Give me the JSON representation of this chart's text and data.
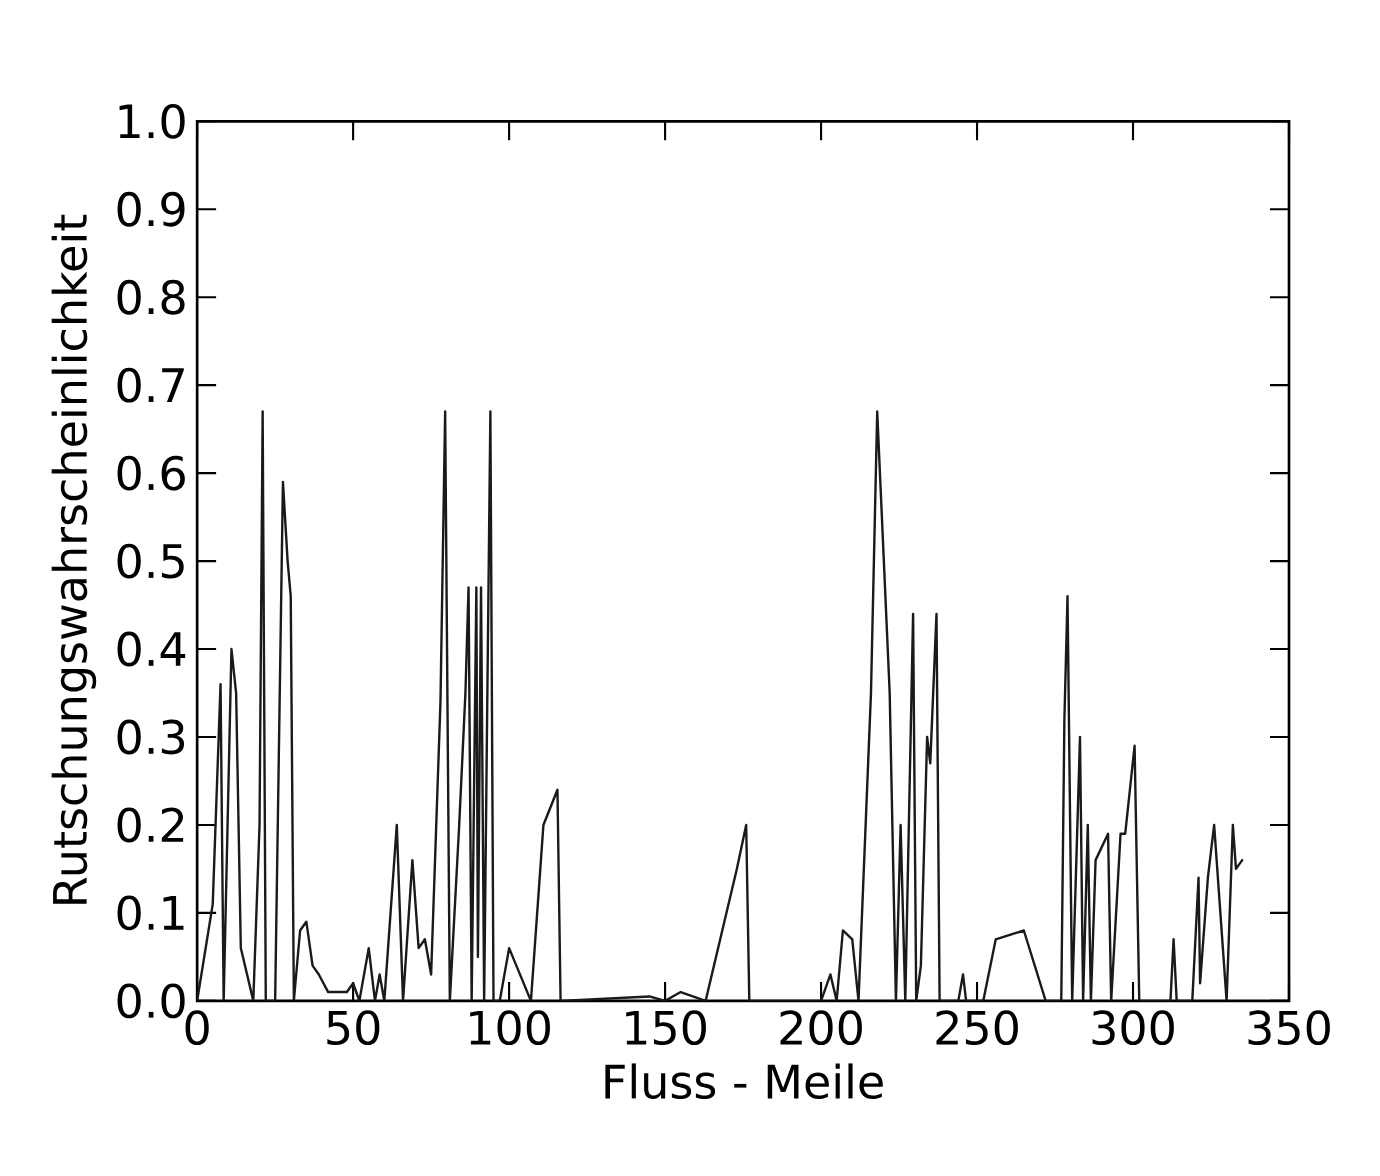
{
  "chart_data": {
    "type": "line",
    "xlabel": "Fluss - Meile",
    "ylabel": "Rutschungswahrscheinlichkeit",
    "x": [
      0,
      5,
      7.5,
      8.5,
      11,
      12.5,
      14,
      18,
      20,
      21,
      22,
      25,
      27.5,
      29,
      30,
      31,
      33,
      35,
      37,
      39,
      42,
      48,
      50,
      52,
      55,
      57,
      58.5,
      60,
      64,
      66,
      69,
      71,
      73,
      75,
      78,
      79.5,
      81,
      84,
      86,
      87,
      88,
      89.5,
      90,
      91,
      92,
      93,
      94,
      95,
      97,
      100,
      107,
      111,
      115.5,
      116.5,
      145,
      150,
      155,
      163,
      173,
      176,
      177,
      200,
      203,
      205,
      207,
      210,
      212,
      216,
      218,
      222,
      224,
      225.5,
      227,
      229.5,
      230.5,
      232,
      234,
      235,
      237,
      238,
      244,
      245.5,
      246.5,
      252,
      256,
      265,
      272,
      277,
      278,
      279,
      280.5,
      283,
      284,
      285.5,
      286.5,
      288,
      292,
      293,
      296,
      297.5,
      300.5,
      302,
      312,
      313,
      314,
      319,
      321,
      321.5,
      324,
      326,
      330,
      332,
      333,
      335
    ],
    "values": [
      0,
      0.11,
      0.36,
      0,
      0.4,
      0.35,
      0.06,
      0,
      0.2,
      0.67,
      0,
      0,
      0.59,
      0.5,
      0.46,
      0,
      0.08,
      0.09,
      0.04,
      0.03,
      0.01,
      0.01,
      0.02,
      0,
      0.06,
      0,
      0.03,
      0,
      0.2,
      0,
      0.16,
      0.06,
      0.07,
      0.03,
      0.34,
      0.67,
      0,
      0.2,
      0.35,
      0.47,
      0,
      0.47,
      0.05,
      0.47,
      0,
      0.34,
      0.67,
      0,
      0,
      0.06,
      0,
      0.2,
      0.24,
      0,
      0.005,
      0,
      0.01,
      0,
      0.15,
      0.2,
      0,
      0,
      0.03,
      0,
      0.08,
      0.07,
      0,
      0.35,
      0.67,
      0.35,
      0,
      0.2,
      0,
      0.44,
      0,
      0.04,
      0.3,
      0.27,
      0.44,
      0,
      0,
      0.03,
      0,
      0,
      0.07,
      0.08,
      0,
      0,
      0.32,
      0.46,
      0,
      0.3,
      0,
      0.2,
      0,
      0.16,
      0.19,
      0,
      0.19,
      0.19,
      0.29,
      0,
      0,
      0.07,
      0,
      0,
      0.14,
      0.02,
      0.14,
      0.2,
      0,
      0.2,
      0.15,
      0.16
    ],
    "color": "#1a1a1a",
    "xlim": [
      0,
      350
    ],
    "ylim": [
      0,
      1.0
    ],
    "xticks": [
      0,
      50,
      100,
      150,
      200,
      250,
      300,
      350
    ],
    "yticks": [
      {
        "value": 0,
        "label": "0.0"
      },
      {
        "value": 0.1,
        "label": "0.1"
      },
      {
        "value": 0.2,
        "label": "0.2"
      },
      {
        "value": 0.3,
        "label": "0.3"
      },
      {
        "value": 0.4,
        "label": "0.4"
      },
      {
        "value": 0.5,
        "label": "0.5"
      },
      {
        "value": 0.6,
        "label": "0.6"
      },
      {
        "value": 0.7,
        "label": "0.7"
      },
      {
        "value": 0.8,
        "label": "0.8"
      },
      {
        "value": 0.9,
        "label": "0.9"
      },
      {
        "value": 1.0,
        "label": "1.0"
      }
    ],
    "grid": false,
    "marker": "none",
    "line_style": "solid"
  }
}
